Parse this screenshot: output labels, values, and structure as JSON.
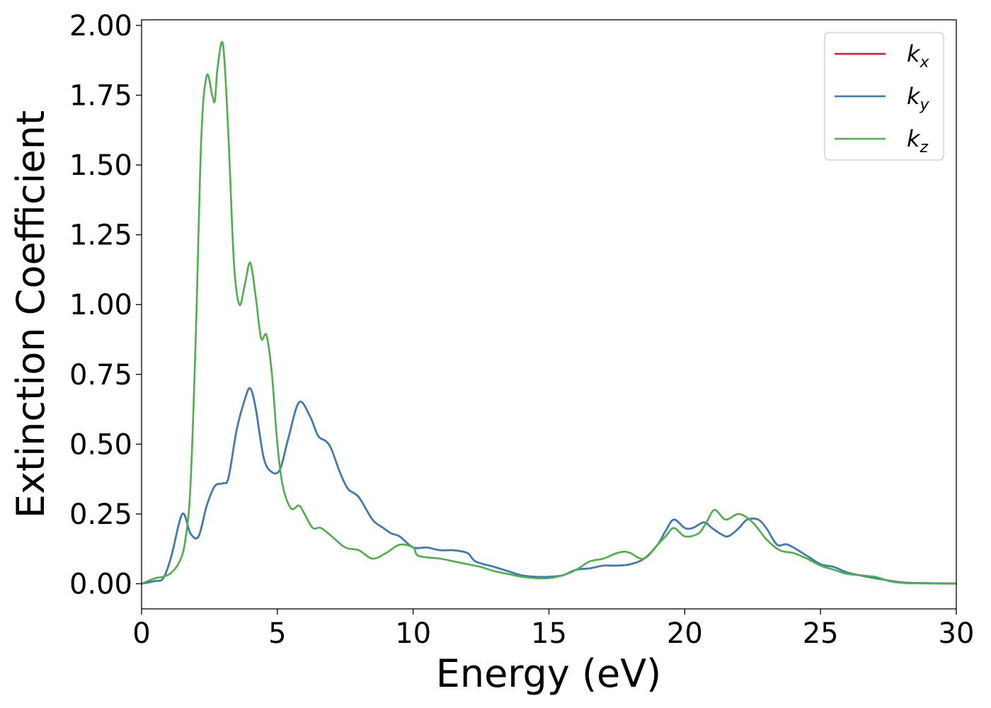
{
  "chart_data": {
    "type": "line",
    "xlabel": "Energy (eV)",
    "ylabel": "Extinction Coefficient",
    "xlim": [
      0,
      30
    ],
    "ylim": [
      -0.09,
      2.02
    ],
    "xticks": [
      0,
      5,
      10,
      15,
      20,
      25,
      30
    ],
    "xtick_labels": [
      "0",
      "5",
      "10",
      "15",
      "20",
      "25",
      "30"
    ],
    "yticks": [
      0.0,
      0.25,
      0.5,
      0.75,
      1.0,
      1.25,
      1.5,
      1.75,
      2.0
    ],
    "ytick_labels": [
      "0.00",
      "0.25",
      "0.50",
      "0.75",
      "1.00",
      "1.25",
      "1.50",
      "1.75",
      "2.00"
    ],
    "grid": false,
    "legend_position": "top-right",
    "series": [
      {
        "name": "k",
        "subscript": "x",
        "color": "#e41a1c",
        "points": [
          [
            0,
            0
          ],
          [
            0.5,
            0.01
          ],
          [
            0.8,
            0.02
          ],
          [
            1.1,
            0.1
          ],
          [
            1.5,
            0.25
          ],
          [
            1.8,
            0.18
          ],
          [
            2.1,
            0.17
          ],
          [
            2.4,
            0.28
          ],
          [
            2.7,
            0.35
          ],
          [
            3.0,
            0.36
          ],
          [
            3.2,
            0.38
          ],
          [
            3.5,
            0.55
          ],
          [
            3.8,
            0.66
          ],
          [
            4.0,
            0.7
          ],
          [
            4.2,
            0.63
          ],
          [
            4.5,
            0.45
          ],
          [
            4.8,
            0.4
          ],
          [
            5.1,
            0.41
          ],
          [
            5.4,
            0.52
          ],
          [
            5.8,
            0.65
          ],
          [
            6.2,
            0.6
          ],
          [
            6.5,
            0.53
          ],
          [
            6.8,
            0.51
          ],
          [
            7.0,
            0.48
          ],
          [
            7.3,
            0.4
          ],
          [
            7.6,
            0.34
          ],
          [
            8.0,
            0.31
          ],
          [
            8.5,
            0.23
          ],
          [
            8.9,
            0.2
          ],
          [
            9.2,
            0.18
          ],
          [
            9.5,
            0.17
          ],
          [
            10.0,
            0.13
          ],
          [
            10.5,
            0.13
          ],
          [
            11.0,
            0.12
          ],
          [
            11.5,
            0.12
          ],
          [
            12.0,
            0.11
          ],
          [
            12.3,
            0.08
          ],
          [
            13.0,
            0.06
          ],
          [
            13.5,
            0.045
          ],
          [
            14.0,
            0.03
          ],
          [
            14.5,
            0.025
          ],
          [
            15.0,
            0.025
          ],
          [
            15.5,
            0.03
          ],
          [
            16.0,
            0.05
          ],
          [
            16.5,
            0.055
          ],
          [
            17.0,
            0.065
          ],
          [
            17.5,
            0.065
          ],
          [
            18.0,
            0.07
          ],
          [
            18.5,
            0.09
          ],
          [
            19.0,
            0.14
          ],
          [
            19.3,
            0.19
          ],
          [
            19.6,
            0.23
          ],
          [
            20.0,
            0.2
          ],
          [
            20.3,
            0.2
          ],
          [
            20.7,
            0.22
          ],
          [
            21.0,
            0.2
          ],
          [
            21.3,
            0.18
          ],
          [
            21.6,
            0.17
          ],
          [
            22.0,
            0.2
          ],
          [
            22.3,
            0.23
          ],
          [
            22.7,
            0.23
          ],
          [
            23.0,
            0.2
          ],
          [
            23.4,
            0.14
          ],
          [
            23.8,
            0.14
          ],
          [
            24.5,
            0.1
          ],
          [
            25.0,
            0.07
          ],
          [
            25.5,
            0.06
          ],
          [
            26.0,
            0.04
          ],
          [
            27.0,
            0.02
          ],
          [
            28.0,
            0.005
          ],
          [
            29.0,
            0.002
          ],
          [
            30.0,
            0.001
          ]
        ]
      },
      {
        "name": "k",
        "subscript": "y",
        "color": "#377eb8",
        "points": [
          [
            0,
            0
          ],
          [
            0.5,
            0.01
          ],
          [
            0.8,
            0.02
          ],
          [
            1.1,
            0.1
          ],
          [
            1.5,
            0.25
          ],
          [
            1.8,
            0.18
          ],
          [
            2.1,
            0.17
          ],
          [
            2.4,
            0.28
          ],
          [
            2.7,
            0.35
          ],
          [
            3.0,
            0.36
          ],
          [
            3.2,
            0.38
          ],
          [
            3.5,
            0.55
          ],
          [
            3.8,
            0.66
          ],
          [
            4.0,
            0.7
          ],
          [
            4.2,
            0.63
          ],
          [
            4.5,
            0.45
          ],
          [
            4.8,
            0.4
          ],
          [
            5.1,
            0.41
          ],
          [
            5.4,
            0.52
          ],
          [
            5.8,
            0.65
          ],
          [
            6.2,
            0.6
          ],
          [
            6.5,
            0.53
          ],
          [
            6.8,
            0.51
          ],
          [
            7.0,
            0.48
          ],
          [
            7.3,
            0.4
          ],
          [
            7.6,
            0.34
          ],
          [
            8.0,
            0.31
          ],
          [
            8.5,
            0.23
          ],
          [
            8.9,
            0.2
          ],
          [
            9.2,
            0.18
          ],
          [
            9.5,
            0.17
          ],
          [
            10.0,
            0.13
          ],
          [
            10.5,
            0.13
          ],
          [
            11.0,
            0.12
          ],
          [
            11.5,
            0.12
          ],
          [
            12.0,
            0.11
          ],
          [
            12.3,
            0.08
          ],
          [
            13.0,
            0.06
          ],
          [
            13.5,
            0.045
          ],
          [
            14.0,
            0.03
          ],
          [
            14.5,
            0.025
          ],
          [
            15.0,
            0.025
          ],
          [
            15.5,
            0.03
          ],
          [
            16.0,
            0.05
          ],
          [
            16.5,
            0.055
          ],
          [
            17.0,
            0.065
          ],
          [
            17.5,
            0.065
          ],
          [
            18.0,
            0.07
          ],
          [
            18.5,
            0.09
          ],
          [
            19.0,
            0.14
          ],
          [
            19.3,
            0.19
          ],
          [
            19.6,
            0.23
          ],
          [
            20.0,
            0.2
          ],
          [
            20.3,
            0.2
          ],
          [
            20.7,
            0.22
          ],
          [
            21.0,
            0.2
          ],
          [
            21.3,
            0.18
          ],
          [
            21.6,
            0.17
          ],
          [
            22.0,
            0.2
          ],
          [
            22.3,
            0.23
          ],
          [
            22.7,
            0.23
          ],
          [
            23.0,
            0.2
          ],
          [
            23.4,
            0.14
          ],
          [
            23.8,
            0.14
          ],
          [
            24.5,
            0.1
          ],
          [
            25.0,
            0.07
          ],
          [
            25.5,
            0.06
          ],
          [
            26.0,
            0.04
          ],
          [
            27.0,
            0.02
          ],
          [
            28.0,
            0.005
          ],
          [
            29.0,
            0.002
          ],
          [
            30.0,
            0.001
          ]
        ]
      },
      {
        "name": "k",
        "subscript": "z",
        "color": "#4daf4a",
        "points": [
          [
            0,
            0
          ],
          [
            0.5,
            0.02
          ],
          [
            0.8,
            0.025
          ],
          [
            1.1,
            0.04
          ],
          [
            1.4,
            0.08
          ],
          [
            1.6,
            0.15
          ],
          [
            1.8,
            0.35
          ],
          [
            2.0,
            0.9
          ],
          [
            2.2,
            1.6
          ],
          [
            2.4,
            1.82
          ],
          [
            2.6,
            1.75
          ],
          [
            2.7,
            1.73
          ],
          [
            2.8,
            1.85
          ],
          [
            3.0,
            1.93
          ],
          [
            3.2,
            1.6
          ],
          [
            3.4,
            1.15
          ],
          [
            3.6,
            1.0
          ],
          [
            3.8,
            1.07
          ],
          [
            4.0,
            1.15
          ],
          [
            4.2,
            1.03
          ],
          [
            4.4,
            0.88
          ],
          [
            4.6,
            0.89
          ],
          [
            4.8,
            0.75
          ],
          [
            5.0,
            0.5
          ],
          [
            5.2,
            0.35
          ],
          [
            5.5,
            0.27
          ],
          [
            5.8,
            0.28
          ],
          [
            6.0,
            0.25
          ],
          [
            6.3,
            0.2
          ],
          [
            6.6,
            0.2
          ],
          [
            7.0,
            0.17
          ],
          [
            7.5,
            0.13
          ],
          [
            8.0,
            0.12
          ],
          [
            8.5,
            0.09
          ],
          [
            9.0,
            0.11
          ],
          [
            9.5,
            0.14
          ],
          [
            10.0,
            0.13
          ],
          [
            10.2,
            0.1
          ],
          [
            11.0,
            0.09
          ],
          [
            11.5,
            0.08
          ],
          [
            12.0,
            0.07
          ],
          [
            12.5,
            0.06
          ],
          [
            13.0,
            0.045
          ],
          [
            13.5,
            0.035
          ],
          [
            14.0,
            0.025
          ],
          [
            14.5,
            0.02
          ],
          [
            15.0,
            0.02
          ],
          [
            15.5,
            0.03
          ],
          [
            16.0,
            0.05
          ],
          [
            16.5,
            0.08
          ],
          [
            17.0,
            0.09
          ],
          [
            17.5,
            0.11
          ],
          [
            17.8,
            0.115
          ],
          [
            18.0,
            0.11
          ],
          [
            18.5,
            0.09
          ],
          [
            19.0,
            0.14
          ],
          [
            19.3,
            0.17
          ],
          [
            19.6,
            0.2
          ],
          [
            20.0,
            0.17
          ],
          [
            20.5,
            0.18
          ],
          [
            20.8,
            0.22
          ],
          [
            21.1,
            0.265
          ],
          [
            21.5,
            0.23
          ],
          [
            22.0,
            0.25
          ],
          [
            22.5,
            0.22
          ],
          [
            23.0,
            0.16
          ],
          [
            23.5,
            0.12
          ],
          [
            24.0,
            0.11
          ],
          [
            24.5,
            0.09
          ],
          [
            25.0,
            0.065
          ],
          [
            25.5,
            0.05
          ],
          [
            26.0,
            0.035
          ],
          [
            27.0,
            0.025
          ],
          [
            27.5,
            0.01
          ],
          [
            28.0,
            0.003
          ],
          [
            29.0,
            0.001
          ],
          [
            30.0,
            0.0
          ]
        ]
      }
    ]
  }
}
